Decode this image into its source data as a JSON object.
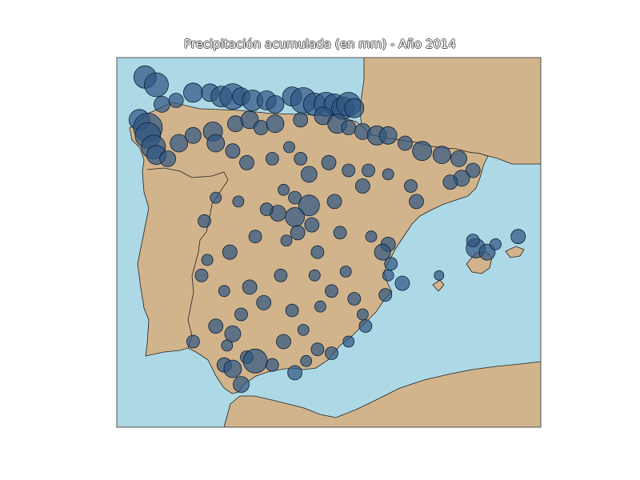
{
  "title": "Precipitación acumulada (en mm) - Año 2014",
  "colors": {
    "sea": "#add8e6",
    "land": "#d2b48c",
    "coast": "#222222",
    "marker_fill": "#2e5581",
    "marker_stroke": "#0f1f33"
  },
  "chart_data": {
    "type": "scatter",
    "xlabel": "",
    "ylabel": "",
    "series": [
      {
        "values": [
          [
            44.0,
            -9.0,
            14
          ],
          [
            43.8,
            -8.6,
            15
          ],
          [
            43.3,
            -8.4,
            10
          ],
          [
            43.4,
            -7.9,
            9
          ],
          [
            43.6,
            -7.3,
            12
          ],
          [
            43.6,
            -6.7,
            11
          ],
          [
            43.5,
            -6.3,
            13
          ],
          [
            43.5,
            -5.9,
            16
          ],
          [
            43.5,
            -5.6,
            11
          ],
          [
            43.4,
            -5.2,
            13
          ],
          [
            43.4,
            -4.7,
            12
          ],
          [
            43.3,
            -4.4,
            11
          ],
          [
            43.5,
            -3.8,
            12
          ],
          [
            43.4,
            -3.4,
            16
          ],
          [
            43.3,
            -3.0,
            14
          ],
          [
            43.3,
            -2.6,
            15
          ],
          [
            43.3,
            -2.3,
            13
          ],
          [
            43.2,
            -2.0,
            14
          ],
          [
            43.3,
            -1.8,
            15
          ],
          [
            43.2,
            -1.6,
            12
          ],
          [
            42.9,
            -9.2,
            13
          ],
          [
            42.7,
            -8.9,
            18
          ],
          [
            42.5,
            -8.9,
            16
          ],
          [
            42.2,
            -8.7,
            15
          ],
          [
            42.0,
            -8.6,
            12
          ],
          [
            41.9,
            -8.2,
            10
          ],
          [
            42.3,
            -7.8,
            11
          ],
          [
            42.5,
            -7.3,
            10
          ],
          [
            42.6,
            -6.6,
            12
          ],
          [
            42.8,
            -5.8,
            10
          ],
          [
            42.9,
            -5.3,
            11
          ],
          [
            42.7,
            -4.9,
            9
          ],
          [
            42.8,
            -4.4,
            11
          ],
          [
            42.9,
            -3.5,
            9
          ],
          [
            43.0,
            -2.7,
            11
          ],
          [
            42.8,
            -2.2,
            12
          ],
          [
            42.7,
            -1.8,
            9
          ],
          [
            42.6,
            -1.3,
            10
          ],
          [
            42.5,
            -0.8,
            12
          ],
          [
            42.5,
            -0.4,
            11
          ],
          [
            42.3,
            0.2,
            9
          ],
          [
            42.1,
            0.8,
            12
          ],
          [
            42.0,
            1.5,
            11
          ],
          [
            41.9,
            2.1,
            10
          ],
          [
            41.6,
            2.6,
            9
          ],
          [
            41.4,
            2.2,
            10
          ],
          [
            41.3,
            1.8,
            9
          ],
          [
            42.3,
            -6.5,
            11
          ],
          [
            42.1,
            -5.9,
            9
          ],
          [
            41.8,
            -5.4,
            9
          ],
          [
            41.9,
            -4.5,
            8
          ],
          [
            42.2,
            -3.9,
            7
          ],
          [
            41.9,
            -3.5,
            8
          ],
          [
            41.8,
            -2.5,
            9
          ],
          [
            41.6,
            -1.8,
            8
          ],
          [
            41.6,
            -1.1,
            8
          ],
          [
            41.5,
            -0.4,
            7
          ],
          [
            41.2,
            0.4,
            8
          ],
          [
            40.8,
            0.6,
            9
          ],
          [
            41.1,
            -4.1,
            7
          ],
          [
            40.9,
            -3.7,
            8
          ],
          [
            40.7,
            -3.2,
            13
          ],
          [
            40.5,
            -4.3,
            10
          ],
          [
            40.6,
            -4.7,
            8
          ],
          [
            40.8,
            -5.7,
            7
          ],
          [
            40.9,
            -6.5,
            7
          ],
          [
            40.3,
            -6.9,
            8
          ],
          [
            40.4,
            -3.7,
            12
          ],
          [
            40.2,
            -3.1,
            9
          ],
          [
            40.0,
            -2.1,
            8
          ],
          [
            39.9,
            -1.0,
            7
          ],
          [
            39.7,
            -0.4,
            9
          ],
          [
            39.5,
            -0.6,
            10
          ],
          [
            39.2,
            -0.3,
            8
          ],
          [
            38.9,
            -0.4,
            7
          ],
          [
            38.7,
            0.1,
            9
          ],
          [
            38.4,
            -0.5,
            8
          ],
          [
            39.5,
            -2.9,
            8
          ],
          [
            39.8,
            -4.0,
            7
          ],
          [
            39.9,
            -5.1,
            8
          ],
          [
            39.5,
            -6.0,
            9
          ],
          [
            39.3,
            -6.8,
            7
          ],
          [
            38.9,
            -7.0,
            8
          ],
          [
            38.5,
            -6.2,
            7
          ],
          [
            38.6,
            -5.3,
            9
          ],
          [
            38.9,
            -4.2,
            8
          ],
          [
            38.9,
            -3.0,
            7
          ],
          [
            38.5,
            -2.4,
            8
          ],
          [
            38.1,
            -2.8,
            7
          ],
          [
            38.0,
            -3.8,
            8
          ],
          [
            38.2,
            -4.8,
            9
          ],
          [
            37.9,
            -5.6,
            8
          ],
          [
            37.6,
            -6.5,
            9
          ],
          [
            37.4,
            -5.9,
            10
          ],
          [
            37.2,
            -7.3,
            8
          ],
          [
            37.1,
            -6.1,
            7
          ],
          [
            36.8,
            -5.4,
            8
          ],
          [
            36.6,
            -6.2,
            9
          ],
          [
            36.6,
            -4.5,
            8
          ],
          [
            36.7,
            -3.3,
            7
          ],
          [
            36.9,
            -2.4,
            8
          ],
          [
            37.2,
            -1.8,
            7
          ],
          [
            37.6,
            -1.2,
            8
          ],
          [
            37.9,
            -1.3,
            7
          ],
          [
            38.3,
            -1.6,
            8
          ],
          [
            36.7,
            -5.1,
            15
          ],
          [
            36.5,
            -5.9,
            11
          ],
          [
            36.1,
            -5.6,
            10
          ],
          [
            36.4,
            -3.7,
            9
          ],
          [
            37.0,
            -2.9,
            8
          ],
          [
            37.2,
            -4.1,
            9
          ],
          [
            37.5,
            -3.4,
            7
          ],
          [
            39.6,
            2.7,
            12
          ],
          [
            39.5,
            3.1,
            10
          ],
          [
            39.9,
            4.2,
            9
          ],
          [
            38.9,
            1.4,
            6
          ],
          [
            39.8,
            2.6,
            8
          ],
          [
            39.7,
            3.4,
            7
          ],
          [
            40.0,
            -3.6,
            9
          ],
          [
            40.8,
            -2.3,
            9
          ],
          [
            41.5,
            -3.2,
            10
          ],
          [
            41.2,
            -1.3,
            9
          ],
          [
            39.0,
            -1.9,
            7
          ]
        ]
      }
    ],
    "x_label_note": "",
    "lon_range": [
      -10.0,
      5.0
    ],
    "lat_range": [
      35.0,
      44.5
    ],
    "legend": "none",
    "grid": false
  }
}
